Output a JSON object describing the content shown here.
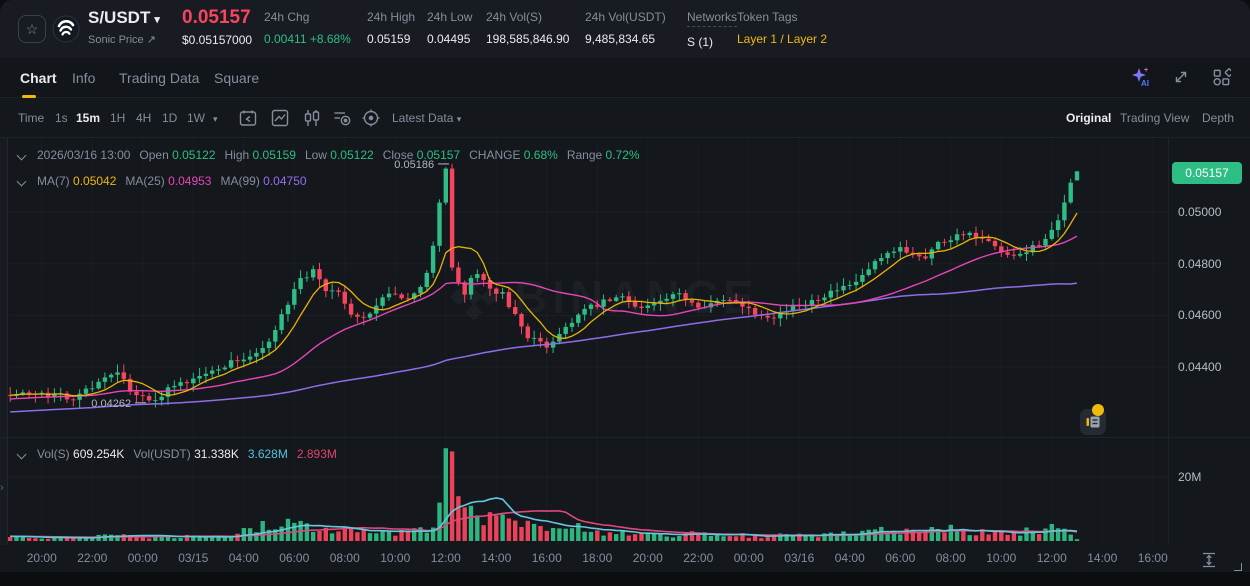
{
  "icons": {
    "star": "☆",
    "caret_down": "▾",
    "external_link": "↗"
  },
  "header": {
    "pair": "S/USDT",
    "subtitle": "Sonic Price",
    "price": "0.05157",
    "price_usd": "$0.05157000",
    "stats": [
      {
        "label": "24h Chg",
        "value": "0.00411 +8.68%",
        "type": "up"
      },
      {
        "label": "24h High",
        "value": "0.05159",
        "type": "plain"
      },
      {
        "label": "24h Low",
        "value": "0.04495",
        "type": "plain"
      },
      {
        "label": "24h Vol(S)",
        "value": "198,585,846.90",
        "type": "plain"
      },
      {
        "label": "24h Vol(USDT)",
        "value": "9,485,834.65",
        "type": "plain"
      },
      {
        "label": "Networks",
        "value": "S (1)",
        "type": "dashed"
      },
      {
        "label": "Token Tags",
        "value": "Layer 1 / Layer 2",
        "type": "tag"
      }
    ]
  },
  "tabs": {
    "items": [
      "Chart",
      "Info",
      "Trading Data",
      "Square"
    ],
    "active": "Chart"
  },
  "toolbar": {
    "intervals": [
      "Time",
      "1s",
      "15m",
      "1H",
      "4H",
      "1D",
      "1W"
    ],
    "active_interval": "15m",
    "latest_data": "Latest Data",
    "views": [
      "Original",
      "Trading View",
      "Depth"
    ],
    "active_view": "Original"
  },
  "legend": {
    "ohlc": {
      "date": "2026/03/16 13:00",
      "items": [
        {
          "k": "Open",
          "v": "0.05122"
        },
        {
          "k": "High",
          "v": "0.05159"
        },
        {
          "k": "Low",
          "v": "0.05122"
        },
        {
          "k": "Close",
          "v": "0.05157"
        },
        {
          "k": "CHANGE",
          "v": "0.68%"
        },
        {
          "k": "Range",
          "v": "0.72%"
        }
      ]
    },
    "ma": [
      {
        "k": "MA(7)",
        "v": "0.05042",
        "color": "#f0b90b"
      },
      {
        "k": "MA(25)",
        "v": "0.04953",
        "color": "#e645b8"
      },
      {
        "k": "MA(99)",
        "v": "0.04750",
        "color": "#9b6df0"
      }
    ],
    "volume": [
      {
        "k": "Vol(S)",
        "v": "609.254K",
        "color": "#eaecef"
      },
      {
        "k": "Vol(USDT)",
        "v": "31.338K",
        "color": "#eaecef"
      },
      {
        "k": "",
        "v": "3.628M",
        "color": "#56c1dc"
      },
      {
        "k": "",
        "v": "2.893M",
        "color": "#e0446e"
      }
    ]
  },
  "watermark": {
    "text": "BINANCE"
  },
  "chart_data": {
    "type": "candlestick+volume",
    "pair": "S/USDT",
    "interval": "15m",
    "n_candles": 170,
    "seed": 7,
    "colors": {
      "up": "#2ebd85",
      "down": "#f6465d",
      "ma7": "#e8b208",
      "ma25": "#e645b8",
      "ma99": "#8f6de8",
      "vol_ma_fast": "#63c8e0",
      "vol_ma_slow": "#e0487c",
      "last_price_badge": "#2ebd85"
    },
    "price_axis": {
      "ticks": [
        {
          "price": 0.05,
          "label": "0.05000"
        },
        {
          "price": 0.048,
          "label": "0.04800"
        },
        {
          "price": 0.046,
          "label": "0.04600"
        },
        {
          "price": 0.044,
          "label": "0.04400"
        }
      ],
      "last_price": 0.05157,
      "last_price_label": "0.05157"
    },
    "volume_axis": {
      "tick_label": "20M",
      "tick_value_m": 20
    },
    "time_axis": {
      "ticks": [
        {
          "i": 5,
          "label": "20:00"
        },
        {
          "i": 13,
          "label": "22:00"
        },
        {
          "i": 21,
          "label": "00:00"
        },
        {
          "i": 29,
          "label": "03/15"
        },
        {
          "i": 37,
          "label": "04:00"
        },
        {
          "i": 45,
          "label": "06:00"
        },
        {
          "i": 53,
          "label": "08:00"
        },
        {
          "i": 61,
          "label": "10:00"
        },
        {
          "i": 69,
          "label": "12:00"
        },
        {
          "i": 77,
          "label": "14:00"
        },
        {
          "i": 85,
          "label": "16:00"
        },
        {
          "i": 93,
          "label": "18:00"
        },
        {
          "i": 101,
          "label": "20:00"
        },
        {
          "i": 109,
          "label": "22:00"
        },
        {
          "i": 117,
          "label": "00:00"
        },
        {
          "i": 125,
          "label": "03/16"
        },
        {
          "i": 133,
          "label": "04:00"
        },
        {
          "i": 141,
          "label": "06:00"
        },
        {
          "i": 149,
          "label": "08:00"
        },
        {
          "i": 157,
          "label": "10:00"
        },
        {
          "i": 165,
          "label": "12:00"
        },
        {
          "i": 173,
          "label": "14:00"
        },
        {
          "i": 181,
          "label": "16:00"
        }
      ]
    },
    "close_anchors": [
      [
        0,
        0.043
      ],
      [
        6,
        0.0429
      ],
      [
        10,
        0.04285
      ],
      [
        14,
        0.0434
      ],
      [
        17,
        0.0437
      ],
      [
        20,
        0.0429
      ],
      [
        22,
        0.0427
      ],
      [
        25,
        0.0431
      ],
      [
        30,
        0.0436
      ],
      [
        34,
        0.0441
      ],
      [
        38,
        0.0444
      ],
      [
        41,
        0.045
      ],
      [
        44,
        0.0464
      ],
      [
        46,
        0.0474
      ],
      [
        48,
        0.0477
      ],
      [
        50,
        0.047
      ],
      [
        52,
        0.0468
      ],
      [
        54,
        0.046
      ],
      [
        56,
        0.0459
      ],
      [
        58,
        0.0464
      ],
      [
        60,
        0.0468
      ],
      [
        62,
        0.0466
      ],
      [
        64,
        0.0468
      ],
      [
        66,
        0.0476
      ],
      [
        67,
        0.0487
      ],
      [
        68,
        0.0503
      ],
      [
        69,
        0.0516
      ],
      [
        70,
        0.0478
      ],
      [
        71,
        0.0472
      ],
      [
        72,
        0.0469
      ],
      [
        73,
        0.0474
      ],
      [
        74,
        0.0477
      ],
      [
        75,
        0.0473
      ],
      [
        76,
        0.0471
      ],
      [
        78,
        0.0468
      ],
      [
        80,
        0.046
      ],
      [
        82,
        0.0452
      ],
      [
        84,
        0.0449
      ],
      [
        85,
        0.0448
      ],
      [
        87,
        0.0453
      ],
      [
        89,
        0.0458
      ],
      [
        91,
        0.0462
      ],
      [
        94,
        0.0465
      ],
      [
        97,
        0.0467
      ],
      [
        100,
        0.0463
      ],
      [
        103,
        0.0465
      ],
      [
        106,
        0.0468
      ],
      [
        109,
        0.0464
      ],
      [
        112,
        0.0465
      ],
      [
        115,
        0.0466
      ],
      [
        118,
        0.0461
      ],
      [
        121,
        0.046
      ],
      [
        124,
        0.0463
      ],
      [
        127,
        0.0466
      ],
      [
        130,
        0.0469
      ],
      [
        133,
        0.0471
      ],
      [
        135,
        0.0475
      ],
      [
        137,
        0.048
      ],
      [
        139,
        0.0483
      ],
      [
        141,
        0.0486
      ],
      [
        143,
        0.0484
      ],
      [
        145,
        0.0483
      ],
      [
        147,
        0.0488
      ],
      [
        149,
        0.049
      ],
      [
        151,
        0.0492
      ],
      [
        153,
        0.049
      ],
      [
        155,
        0.0488
      ],
      [
        157,
        0.0484
      ],
      [
        159,
        0.0482
      ],
      [
        161,
        0.0485
      ],
      [
        163,
        0.0488
      ],
      [
        165,
        0.0492
      ],
      [
        166,
        0.0496
      ],
      [
        167,
        0.0503
      ],
      [
        168,
        0.05122
      ],
      [
        169,
        0.05157
      ]
    ],
    "volume_anchors_m": [
      [
        0,
        1.2
      ],
      [
        10,
        1.0
      ],
      [
        15,
        1.8
      ],
      [
        20,
        1.5
      ],
      [
        25,
        1.2
      ],
      [
        30,
        1.6
      ],
      [
        35,
        2.0
      ],
      [
        40,
        5.0
      ],
      [
        42,
        4.0
      ],
      [
        44,
        6.5
      ],
      [
        46,
        5.5
      ],
      [
        48,
        4.5
      ],
      [
        50,
        3.0
      ],
      [
        53,
        3.5
      ],
      [
        56,
        2.5
      ],
      [
        60,
        2.2
      ],
      [
        64,
        2.8
      ],
      [
        66,
        4.0
      ],
      [
        67,
        6.0
      ],
      [
        68,
        12.0
      ],
      [
        69,
        29.0
      ],
      [
        70,
        28.0
      ],
      [
        71,
        14.0
      ],
      [
        72,
        10.5
      ],
      [
        73,
        11.0
      ],
      [
        74,
        8.0
      ],
      [
        75,
        7.0
      ],
      [
        76,
        9.0
      ],
      [
        78,
        7.0
      ],
      [
        80,
        6.0
      ],
      [
        82,
        5.0
      ],
      [
        84,
        4.0
      ],
      [
        86,
        3.5
      ],
      [
        88,
        3.0
      ],
      [
        90,
        4.0
      ],
      [
        93,
        2.5
      ],
      [
        96,
        2.2
      ],
      [
        100,
        2.0
      ],
      [
        104,
        1.8
      ],
      [
        108,
        2.2
      ],
      [
        112,
        1.6
      ],
      [
        116,
        1.8
      ],
      [
        120,
        1.5
      ],
      [
        124,
        1.8
      ],
      [
        128,
        2.0
      ],
      [
        132,
        2.2
      ],
      [
        136,
        2.8
      ],
      [
        140,
        3.5
      ],
      [
        144,
        2.5
      ],
      [
        148,
        3.8
      ],
      [
        152,
        3.0
      ],
      [
        156,
        2.5
      ],
      [
        160,
        2.8
      ],
      [
        164,
        3.5
      ],
      [
        167,
        4.5
      ],
      [
        168,
        3.5
      ],
      [
        169,
        0.61
      ]
    ],
    "candle_overrides": {
      "22": {
        "low": 0.04262
      },
      "70": {
        "high": 0.05186
      },
      "169": {
        "open": 0.05122,
        "high": 0.05159,
        "low": 0.05122,
        "close": 0.05157
      }
    },
    "annotations": {
      "high": {
        "i": 70,
        "price": 0.05186,
        "label": "0.05186"
      },
      "low": {
        "i": 22,
        "price": 0.04262,
        "label": "0.04262"
      }
    },
    "ma_windows": {
      "price": [
        7,
        25,
        99
      ],
      "volume_fast": 10,
      "volume_slow": 20
    }
  }
}
